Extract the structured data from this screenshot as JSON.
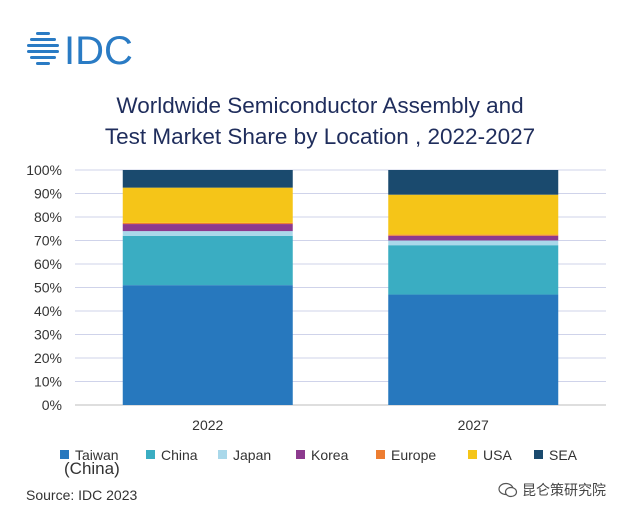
{
  "logo": {
    "text": "IDC",
    "color": "#2a7bc4"
  },
  "chart_data": {
    "type": "bar",
    "stacked": true,
    "title": "Worldwide Semiconductor Assembly and Test Market Share by Location , 2022-2027",
    "title_lines": [
      "Worldwide Semiconductor Assembly and",
      "Test Market Share by Location , 2022-2027"
    ],
    "categories": [
      "2022",
      "2027"
    ],
    "ylim": [
      0,
      100
    ],
    "y_ticks": [
      "0%",
      "10%",
      "20%",
      "30%",
      "40%",
      "50%",
      "60%",
      "70%",
      "80%",
      "90%",
      "100%"
    ],
    "grid": true,
    "legend_position": "bottom",
    "series": [
      {
        "name": "Taiwan (China)",
        "color": "#2778be",
        "values": [
          51,
          47
        ]
      },
      {
        "name": "China",
        "color": "#3aadc2",
        "values": [
          21,
          21
        ]
      },
      {
        "name": "Japan",
        "color": "#a9d8ea",
        "values": [
          2,
          2
        ]
      },
      {
        "name": "Korea",
        "color": "#8c3a8e",
        "values": [
          3,
          2
        ]
      },
      {
        "name": "Europe",
        "color": "#ed7d31",
        "values": [
          0.5,
          0.5
        ]
      },
      {
        "name": "USA",
        "color": "#f5c518",
        "values": [
          15,
          17
        ]
      },
      {
        "name": "SEA",
        "color": "#1a4a6e",
        "values": [
          7.5,
          10.5
        ]
      }
    ]
  },
  "legend": {
    "items": [
      "Taiwan",
      "China",
      "Japan",
      "Korea",
      "Europe",
      "USA",
      "SEA"
    ],
    "sub": "(China)"
  },
  "source": "Source: IDC 2023",
  "watermark": "昆仑策研究院"
}
